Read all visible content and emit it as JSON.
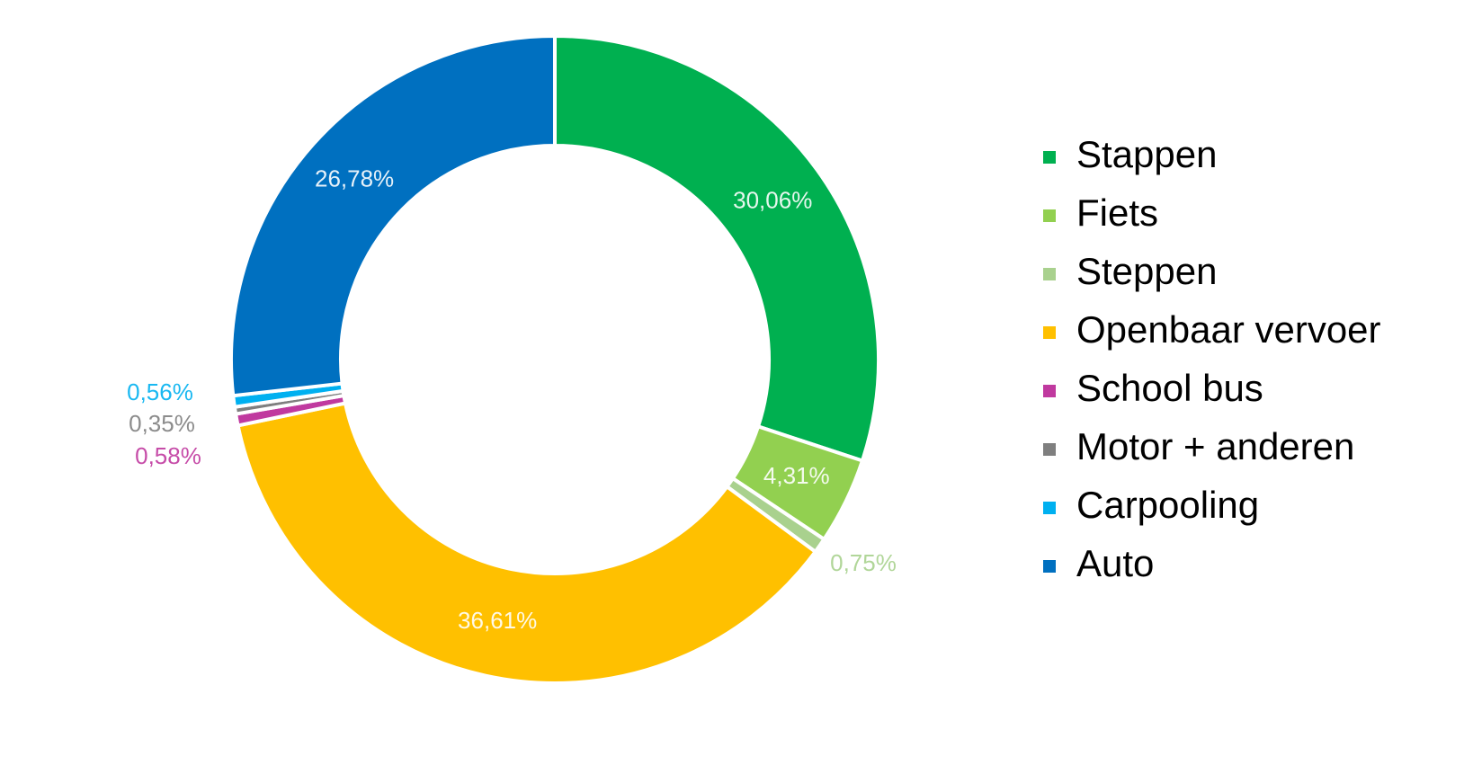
{
  "chart_data": {
    "type": "donut",
    "categories": [
      "Stappen",
      "Fiets",
      "Steppen",
      "Openbaar vervoer",
      "School bus",
      "Motor + anderen",
      "Carpooling",
      "Auto"
    ],
    "values": [
      30.06,
      4.31,
      0.75,
      36.61,
      0.58,
      0.35,
      0.56,
      26.78
    ],
    "value_labels": [
      "30,06%",
      "4,31%",
      "0,75%",
      "36,61%",
      "0,58%",
      "0,35%",
      "0,56%",
      "26,78%"
    ],
    "colors": [
      "#00b050",
      "#92d050",
      "#a9d18e",
      "#ffc000",
      "#c0399f",
      "#7f7f7f",
      "#00b0f0",
      "#0070c0"
    ],
    "legend": "right"
  }
}
